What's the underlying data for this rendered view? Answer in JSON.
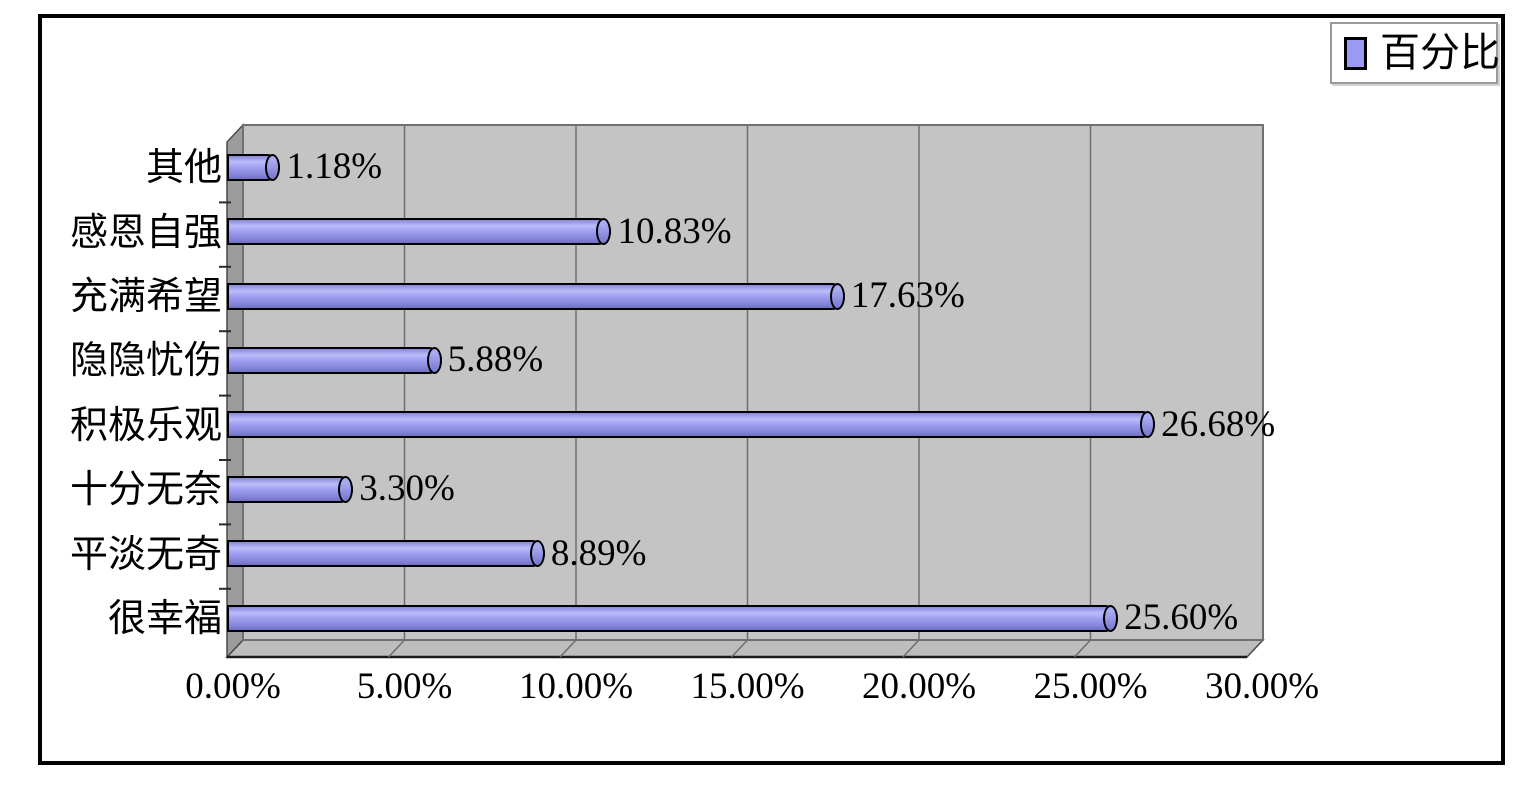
{
  "chart_data": {
    "type": "bar",
    "orientation": "horizontal",
    "effect": "3d-excel",
    "title": "",
    "legend": [
      "百分比"
    ],
    "legend_position": "top-right",
    "categories": [
      "其他",
      "感恩自强",
      "充满希望",
      "隐隐忧伤",
      "积极乐观",
      "十分无奈",
      "平淡无奇",
      "很幸福"
    ],
    "series": [
      {
        "name": "百分比",
        "values": [
          1.18,
          10.83,
          17.63,
          5.88,
          26.68,
          3.3,
          8.89,
          25.6
        ]
      }
    ],
    "data_labels": [
      "1.18%",
      "10.83%",
      "17.63%",
      "5.88%",
      "26.68%",
      "3.30%",
      "8.89%",
      "25.60%"
    ],
    "x_ticks": [
      "0.00%",
      "5.00%",
      "10.00%",
      "15.00%",
      "20.00%",
      "25.00%",
      "30.00%"
    ],
    "xlim": [
      0,
      30
    ],
    "grid": true,
    "bar_color": "#9a9af5",
    "bar_outline_color": "#000000",
    "wall_color": "#c4c4c4",
    "side_wall_color": "#9c9c9c",
    "floor_color": "#bdbdbd",
    "gridline_color": "#6e6e6e",
    "text_color": "#000000"
  }
}
